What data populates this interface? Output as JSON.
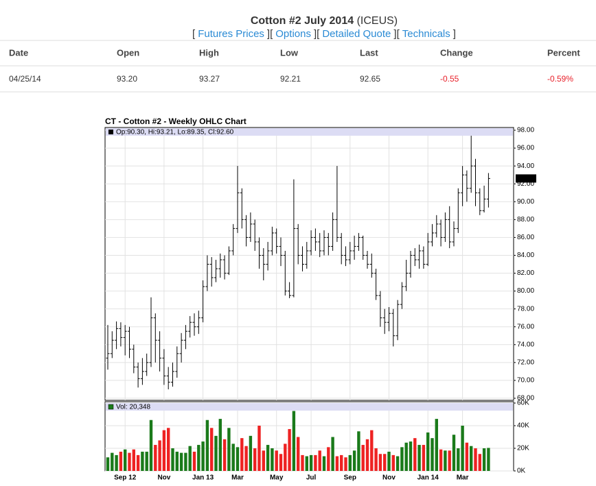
{
  "header": {
    "title": "Cotton #2 July 2014",
    "exchange": "(ICEUS)",
    "bracket_open": "[",
    "bracket_close": "]",
    "links": [
      "Futures Prices",
      "Options",
      "Detailed Quote",
      "Technicals"
    ]
  },
  "quote_table": {
    "columns": [
      "Date",
      "Open",
      "High",
      "Low",
      "Last",
      "Change",
      "Percent"
    ],
    "rows": [
      [
        "04/25/14",
        "93.20",
        "93.27",
        "92.21",
        "92.65",
        "-0.55",
        "-0.59%"
      ]
    ]
  },
  "chart_data": {
    "type": "ohlc",
    "title": "CT - Cotton #2 - Weekly OHLC Chart",
    "info": "Op:90.30, Hi:93.21, Lo:89.35, Cl:92.60",
    "categories": [
      null,
      null,
      null,
      null,
      "Sep 12",
      null,
      null,
      null,
      null,
      null,
      null,
      null,
      null,
      "Nov",
      null,
      null,
      null,
      null,
      null,
      null,
      null,
      null,
      "Jan 13",
      null,
      null,
      null,
      null,
      null,
      null,
      null,
      "Mar",
      null,
      null,
      null,
      null,
      null,
      null,
      null,
      null,
      "May",
      null,
      null,
      null,
      null,
      null,
      null,
      null,
      "Jul",
      null,
      null,
      null,
      null,
      null,
      null,
      null,
      null,
      "Sep",
      null,
      null,
      null,
      null,
      null,
      null,
      null,
      null,
      "Nov",
      null,
      null,
      null,
      null,
      null,
      null,
      null,
      null,
      "Jan 14",
      null,
      null,
      null,
      null,
      null,
      null,
      null,
      "Mar",
      null,
      null,
      null,
      null,
      null,
      null
    ],
    "open": [
      72.5,
      73.0,
      74.5,
      75.8,
      74.8,
      75.5,
      73.5,
      71.5,
      70.2,
      71.0,
      72.0,
      77.0,
      74.5,
      72.5,
      70.5,
      69.8,
      71.0,
      73.0,
      74.5,
      75.5,
      76.5,
      76.0,
      77.0,
      80.5,
      83.0,
      81.5,
      82.5,
      83.5,
      82.0,
      84.5,
      87.0,
      91.0,
      88.0,
      86.0,
      87.5,
      85.5,
      84.0,
      83.0,
      84.5,
      86.5,
      85.0,
      84.0,
      80.0,
      79.5,
      87.0,
      84.0,
      83.0,
      84.5,
      86.0,
      85.5,
      84.5,
      86.0,
      85.0,
      88.0,
      86.0,
      84.0,
      83.5,
      84.5,
      85.0,
      86.0,
      84.0,
      83.0,
      82.0,
      79.5,
      77.0,
      76.5,
      77.5,
      75.0,
      78.5,
      80.5,
      82.0,
      84.0,
      83.5,
      84.5,
      83.0,
      85.5,
      86.5,
      87.5,
      86.0,
      88.0,
      85.5,
      87.0,
      91.0,
      93.0,
      91.5,
      94.0,
      91.0,
      89.0,
      90.3
    ],
    "high": [
      76.2,
      75.5,
      76.6,
      76.5,
      76.2,
      76.0,
      74.0,
      72.0,
      72.5,
      73.0,
      79.3,
      77.5,
      75.5,
      73.5,
      71.5,
      72.0,
      73.8,
      75.3,
      76.2,
      77.2,
      77.5,
      77.8,
      81.2,
      84.0,
      83.8,
      83.5,
      84.2,
      84.0,
      85.0,
      87.5,
      94.0,
      91.5,
      88.5,
      88.8,
      88.0,
      86.0,
      84.8,
      85.5,
      87.2,
      87.0,
      86.0,
      84.5,
      81.0,
      92.5,
      87.5,
      85.0,
      85.5,
      86.8,
      87.0,
      86.5,
      86.8,
      86.5,
      88.8,
      94.0,
      86.5,
      85.0,
      85.5,
      86.2,
      86.5,
      86.2,
      84.5,
      84.2,
      82.5,
      80.0,
      78.0,
      78.2,
      78.0,
      79.0,
      81.0,
      83.5,
      84.5,
      84.8,
      85.2,
      85.0,
      86.5,
      87.5,
      88.5,
      88.0,
      88.8,
      89.5,
      87.8,
      91.5,
      94.0,
      93.5,
      97.5,
      94.8,
      91.5,
      91.8,
      93.21
    ],
    "low": [
      71.2,
      72.5,
      73.5,
      73.8,
      72.8,
      72.5,
      70.8,
      69.2,
      69.5,
      70.5,
      71.5,
      72.0,
      71.0,
      69.5,
      69.0,
      69.3,
      70.3,
      72.0,
      73.5,
      74.8,
      75.0,
      75.2,
      76.5,
      80.0,
      80.5,
      81.0,
      81.5,
      81.3,
      81.8,
      84.0,
      86.5,
      87.0,
      85.0,
      85.5,
      84.5,
      82.5,
      81.2,
      82.3,
      84.0,
      84.2,
      82.8,
      79.5,
      79.2,
      79.3,
      83.0,
      82.2,
      82.5,
      84.0,
      84.5,
      83.8,
      84.0,
      84.0,
      84.5,
      85.5,
      83.0,
      82.8,
      83.0,
      83.5,
      84.5,
      83.5,
      82.5,
      81.5,
      79.0,
      76.0,
      75.2,
      75.5,
      73.8,
      74.5,
      78.0,
      80.0,
      81.5,
      82.8,
      82.5,
      82.5,
      82.8,
      85.0,
      86.0,
      85.0,
      85.5,
      84.8,
      85.0,
      86.5,
      89.5,
      90.0,
      91.0,
      89.5,
      88.5,
      88.8,
      89.35
    ],
    "close": [
      73.0,
      74.5,
      75.8,
      74.8,
      75.5,
      73.5,
      71.5,
      70.2,
      71.0,
      72.0,
      77.0,
      74.5,
      72.5,
      70.5,
      69.8,
      71.0,
      73.0,
      74.5,
      75.5,
      76.5,
      76.0,
      77.0,
      80.5,
      83.0,
      81.5,
      82.5,
      83.5,
      82.0,
      84.5,
      87.0,
      91.0,
      88.0,
      86.0,
      87.5,
      85.5,
      84.0,
      83.0,
      84.5,
      86.5,
      85.0,
      84.0,
      80.0,
      79.5,
      87.0,
      84.0,
      83.0,
      84.5,
      86.0,
      85.5,
      84.5,
      86.0,
      85.0,
      88.0,
      86.0,
      84.0,
      83.5,
      84.5,
      85.0,
      86.0,
      84.0,
      83.0,
      82.0,
      79.5,
      77.0,
      76.5,
      77.5,
      75.0,
      78.5,
      80.5,
      82.0,
      84.0,
      83.5,
      84.5,
      83.0,
      85.5,
      86.5,
      87.5,
      86.0,
      88.0,
      85.5,
      87.0,
      91.0,
      93.0,
      91.5,
      94.0,
      91.0,
      89.0,
      90.3,
      92.6
    ],
    "last_label": "92.60",
    "ylim": [
      68,
      98
    ],
    "yticks": [
      {
        "value": 68,
        "label": "68.00"
      },
      {
        "value": 70,
        "label": "70.00"
      },
      {
        "value": 72,
        "label": "72.00"
      },
      {
        "value": 74,
        "label": "74.00"
      },
      {
        "value": 76,
        "label": "76.00"
      },
      {
        "value": 78,
        "label": "78.00"
      },
      {
        "value": 80,
        "label": "80.00"
      },
      {
        "value": 82,
        "label": "82.00"
      },
      {
        "value": 84,
        "label": "84.00"
      },
      {
        "value": 86,
        "label": "86.00"
      },
      {
        "value": 88,
        "label": "88.00"
      },
      {
        "value": 90,
        "label": "90.00"
      },
      {
        "value": 92,
        "label": "92.00"
      },
      {
        "value": 94,
        "label": "94.00"
      },
      {
        "value": 96,
        "label": "96.00"
      },
      {
        "value": 98,
        "label": "98.00"
      }
    ],
    "grid": true,
    "color": "#000000",
    "up_color": "#1a7a1a",
    "down_color": "#ee2222",
    "volume": {
      "label": "Vol: 20,348",
      "values": [
        12000,
        16000,
        14000,
        17000,
        19000,
        16000,
        19000,
        14000,
        17000,
        17000,
        45000,
        23000,
        27000,
        36000,
        38000,
        20000,
        17000,
        16000,
        16000,
        22000,
        17000,
        23000,
        26000,
        45000,
        38000,
        31000,
        46000,
        28000,
        38000,
        24000,
        21000,
        29000,
        22000,
        31000,
        20000,
        40000,
        18000,
        23000,
        20000,
        18000,
        15000,
        24000,
        37000,
        53000,
        30000,
        14000,
        13000,
        14000,
        14000,
        18000,
        13000,
        21000,
        30000,
        13000,
        14000,
        12000,
        14000,
        18000,
        35000,
        23000,
        28000,
        36000,
        20000,
        15000,
        15000,
        17000,
        14000,
        13000,
        21000,
        25000,
        26000,
        29000,
        23000,
        23000,
        34000,
        29000,
        46000,
        19000,
        18000,
        18000,
        32000,
        20000,
        40000,
        25000,
        22000,
        20000,
        15000,
        20000,
        20348
      ],
      "y2lim": [
        0,
        60000
      ],
      "y2ticks": [
        {
          "value": 0,
          "label": "0K"
        },
        {
          "value": 20000,
          "label": "20K"
        },
        {
          "value": 40000,
          "label": "40K"
        },
        {
          "value": 60000,
          "label": "60K"
        }
      ]
    }
  }
}
